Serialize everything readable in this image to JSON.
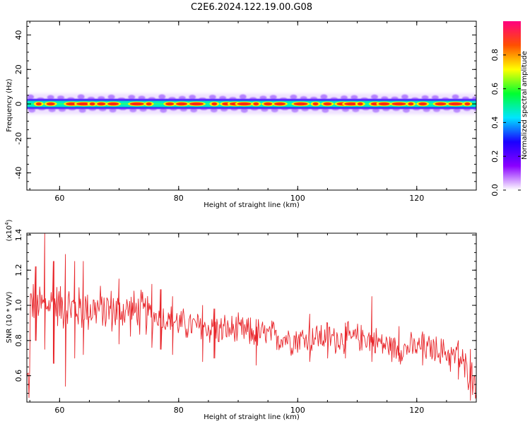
{
  "title": "C2E6.2024.122.19.00.G08",
  "chart_data": [
    {
      "type": "heatmap",
      "xlabel": "Height of straight line (km)",
      "ylabel": "Frequency (Hz)",
      "xlim": [
        54.5,
        130
      ],
      "ylim": [
        -50,
        48
      ],
      "xticks": [
        "60",
        "80",
        "100",
        "120"
      ],
      "yticks": [
        "40",
        "20",
        "0",
        "-20",
        "-40"
      ],
      "description_of_content": "",
      "band": {
        "center": 0,
        "half_width_hz": 2.5,
        "outer_halo_hz": 6
      },
      "hotspots_km": [
        56.5,
        58.5,
        62,
        64,
        65.5,
        67,
        69,
        73,
        75,
        78.5,
        80.5,
        83,
        86,
        88,
        89.5,
        91,
        93,
        95,
        97,
        100.5,
        103,
        105,
        107.5,
        109,
        110.5,
        113,
        114.5,
        117,
        119,
        121,
        124,
        126.5,
        128.5
      ],
      "colorbar": {
        "label": "Normalized spectral amplitude",
        "ticks": [
          "0.0",
          "0.2",
          "0.4",
          "0.6",
          "0.8"
        ],
        "range": [
          0,
          1
        ],
        "colors": [
          "#ffffff",
          "#8a00ff",
          "#1a00ff",
          "#00e5ff",
          "#00ff30",
          "#ffff00",
          "#ff5000",
          "#ff0080"
        ]
      },
      "grid": false
    },
    {
      "type": "line",
      "xlabel": "Height of straight line (km)",
      "ylabel": "SNR (10 * V/V)",
      "multiplier": "(x10",
      "multiplier_exp": "4",
      "multiplier_close": ")",
      "xlim": [
        54.5,
        130
      ],
      "ylim": [
        0.45,
        1.41
      ],
      "xticks": [
        "60",
        "80",
        "100",
        "120"
      ],
      "yticks": [
        "1.4",
        "1.2",
        "1.0",
        "0.8",
        "0.6"
      ],
      "line_color": "#e8252a",
      "x": [
        55,
        57,
        59,
        61,
        63,
        65,
        67,
        69,
        71,
        73,
        75,
        77,
        79,
        81,
        83,
        85,
        87,
        89,
        91,
        93,
        95,
        97,
        99,
        101,
        103,
        105,
        107,
        109,
        111,
        113,
        115,
        117,
        119,
        121,
        123,
        125,
        127,
        129,
        130
      ],
      "series": [
        {
          "values": [
            1.02,
            1.0,
            1.01,
            0.99,
            0.98,
            0.98,
            0.98,
            0.97,
            0.97,
            0.96,
            0.95,
            0.93,
            0.91,
            0.89,
            0.88,
            0.87,
            0.86,
            0.86,
            0.85,
            0.84,
            0.83,
            0.82,
            0.81,
            0.81,
            0.82,
            0.82,
            0.81,
            0.81,
            0.82,
            0.8,
            0.77,
            0.75,
            0.76,
            0.76,
            0.75,
            0.73,
            0.7,
            0.6,
            0.57
          ]
        }
      ],
      "spike_range_at_x": {
        "x": [
          56,
          57.5,
          59,
          61,
          62.5,
          64,
          70,
          75.5,
          77,
          79,
          84,
          86,
          93,
          102,
          105,
          108,
          112.5,
          117,
          121,
          127,
          129
        ],
        "low": [
          0.8,
          0.75,
          0.67,
          0.54,
          0.7,
          0.72,
          0.78,
          0.76,
          0.75,
          0.72,
          0.68,
          0.7,
          0.66,
          0.68,
          0.7,
          0.7,
          0.68,
          0.68,
          0.66,
          0.58,
          0.46
        ],
        "high": [
          1.22,
          1.41,
          1.25,
          1.29,
          1.25,
          1.25,
          1.15,
          1.12,
          1.09,
          1.05,
          1.0,
          0.98,
          0.92,
          0.95,
          0.9,
          0.9,
          1.05,
          0.88,
          0.85,
          0.8,
          0.75
        ]
      },
      "grid": false
    }
  ]
}
